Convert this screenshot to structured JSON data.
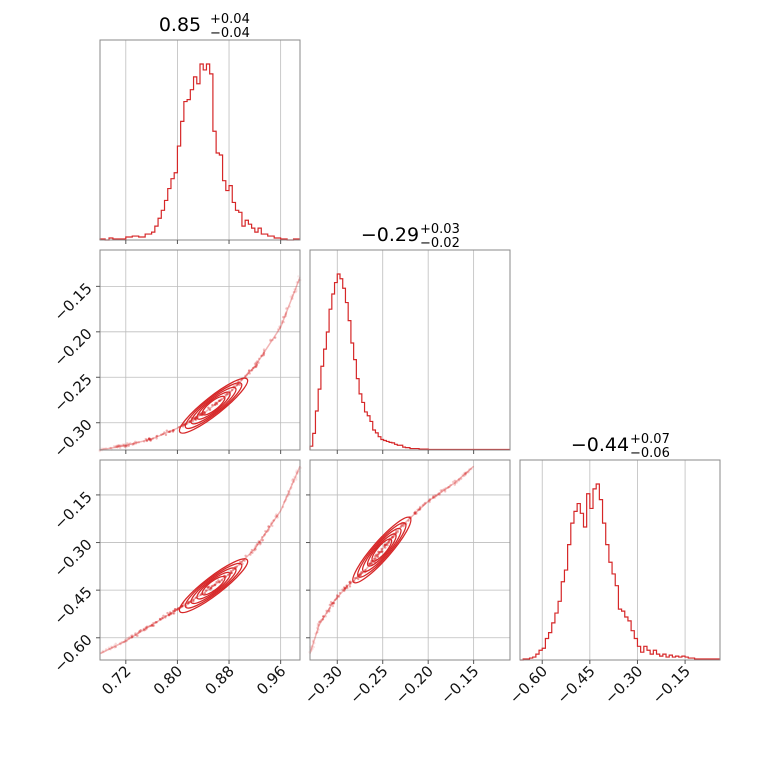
{
  "chart_data": {
    "type": "corner",
    "color": "#d62728",
    "grid": true,
    "parameters": [
      {
        "title_main": "0.85",
        "title_plus": "+0.04",
        "title_minus": "−0.04",
        "range": [
          0.68,
          0.99
        ],
        "ticks": [
          0.72,
          0.8,
          0.88,
          0.96
        ],
        "tick_labels": [
          "0.72",
          "0.80",
          "0.88",
          "0.96"
        ],
        "hist_bins": [
          [
            0.68,
            1
          ],
          [
            0.688,
            0
          ],
          [
            0.694,
            2
          ],
          [
            0.7,
            1
          ],
          [
            0.71,
            1
          ],
          [
            0.72,
            3
          ],
          [
            0.73,
            4
          ],
          [
            0.74,
            3
          ],
          [
            0.75,
            6
          ],
          [
            0.76,
            8
          ],
          [
            0.765,
            14
          ],
          [
            0.77,
            22
          ],
          [
            0.775,
            30
          ],
          [
            0.78,
            40
          ],
          [
            0.785,
            52
          ],
          [
            0.79,
            62
          ],
          [
            0.795,
            68
          ],
          [
            0.8,
            95
          ],
          [
            0.805,
            120
          ],
          [
            0.81,
            140
          ],
          [
            0.815,
            142
          ],
          [
            0.82,
            152
          ],
          [
            0.825,
            165
          ],
          [
            0.83,
            158
          ],
          [
            0.835,
            178
          ],
          [
            0.84,
            172
          ],
          [
            0.845,
            178
          ],
          [
            0.85,
            168
          ],
          [
            0.855,
            110
          ],
          [
            0.86,
            88
          ],
          [
            0.865,
            86
          ],
          [
            0.87,
            60
          ],
          [
            0.875,
            50
          ],
          [
            0.88,
            55
          ],
          [
            0.885,
            38
          ],
          [
            0.89,
            30
          ],
          [
            0.895,
            28
          ],
          [
            0.9,
            14
          ],
          [
            0.905,
            20
          ],
          [
            0.91,
            16
          ],
          [
            0.915,
            12
          ],
          [
            0.92,
            8
          ],
          [
            0.925,
            12
          ],
          [
            0.93,
            6
          ],
          [
            0.94,
            4
          ],
          [
            0.95,
            2
          ],
          [
            0.96,
            1
          ],
          [
            0.97,
            0
          ],
          [
            0.98,
            1
          ]
        ]
      },
      {
        "title_main": "−0.29",
        "title_plus": "+0.03",
        "title_minus": "−0.02",
        "range": [
          -0.33,
          -0.11
        ],
        "ticks": [
          -0.3,
          -0.25,
          -0.2,
          -0.15
        ],
        "tick_labels": [
          "−0.30",
          "−0.25",
          "−0.20",
          "−0.15"
        ],
        "hist_bins": [
          [
            -0.33,
            8
          ],
          [
            -0.327,
            35
          ],
          [
            -0.324,
            82
          ],
          [
            -0.321,
            128
          ],
          [
            -0.318,
            176
          ],
          [
            -0.315,
            212
          ],
          [
            -0.312,
            248
          ],
          [
            -0.309,
            296
          ],
          [
            -0.306,
            328
          ],
          [
            -0.303,
            352
          ],
          [
            -0.3,
            370
          ],
          [
            -0.297,
            360
          ],
          [
            -0.294,
            340
          ],
          [
            -0.291,
            310
          ],
          [
            -0.288,
            272
          ],
          [
            -0.285,
            225
          ],
          [
            -0.282,
            190
          ],
          [
            -0.279,
            150
          ],
          [
            -0.276,
            118
          ],
          [
            -0.273,
            100
          ],
          [
            -0.27,
            80
          ],
          [
            -0.267,
            72
          ],
          [
            -0.264,
            60
          ],
          [
            -0.261,
            42
          ],
          [
            -0.258,
            36
          ],
          [
            -0.255,
            28
          ],
          [
            -0.252,
            22
          ],
          [
            -0.249,
            20
          ],
          [
            -0.246,
            18
          ],
          [
            -0.243,
            16
          ],
          [
            -0.24,
            15
          ],
          [
            -0.237,
            12
          ],
          [
            -0.234,
            10
          ],
          [
            -0.231,
            10
          ],
          [
            -0.228,
            6
          ],
          [
            -0.225,
            5
          ],
          [
            -0.22,
            3
          ],
          [
            -0.21,
            2
          ],
          [
            -0.2,
            1
          ],
          [
            -0.19,
            1
          ],
          [
            -0.18,
            1
          ],
          [
            -0.17,
            1
          ],
          [
            -0.16,
            1
          ],
          [
            -0.14,
            1
          ]
        ]
      },
      {
        "title_main": "−0.44",
        "title_plus": "+0.07",
        "title_minus": "−0.06",
        "range": [
          -0.67,
          -0.04
        ],
        "ticks": [
          -0.6,
          -0.45,
          -0.3,
          -0.15
        ],
        "tick_labels": [
          "−0.60",
          "−0.45",
          "−0.30",
          "−0.15"
        ],
        "hist_bins": [
          [
            -0.67,
            0
          ],
          [
            -0.66,
            1
          ],
          [
            -0.64,
            2
          ],
          [
            -0.63,
            3
          ],
          [
            -0.62,
            6
          ],
          [
            -0.61,
            10
          ],
          [
            -0.6,
            12
          ],
          [
            -0.59,
            22
          ],
          [
            -0.58,
            28
          ],
          [
            -0.57,
            38
          ],
          [
            -0.56,
            48
          ],
          [
            -0.55,
            60
          ],
          [
            -0.54,
            80
          ],
          [
            -0.53,
            92
          ],
          [
            -0.52,
            118
          ],
          [
            -0.51,
            140
          ],
          [
            -0.5,
            152
          ],
          [
            -0.49,
            160
          ],
          [
            -0.48,
            150
          ],
          [
            -0.47,
            136
          ],
          [
            -0.46,
            170
          ],
          [
            -0.45,
            155
          ],
          [
            -0.44,
            175
          ],
          [
            -0.43,
            180
          ],
          [
            -0.42,
            164
          ],
          [
            -0.41,
            140
          ],
          [
            -0.4,
            118
          ],
          [
            -0.39,
            100
          ],
          [
            -0.38,
            88
          ],
          [
            -0.37,
            76
          ],
          [
            -0.36,
            52
          ],
          [
            -0.35,
            50
          ],
          [
            -0.34,
            44
          ],
          [
            -0.33,
            40
          ],
          [
            -0.32,
            30
          ],
          [
            -0.31,
            22
          ],
          [
            -0.3,
            14
          ],
          [
            -0.29,
            8
          ],
          [
            -0.28,
            14
          ],
          [
            -0.27,
            10
          ],
          [
            -0.26,
            6
          ],
          [
            -0.25,
            10
          ],
          [
            -0.24,
            6
          ],
          [
            -0.23,
            4
          ],
          [
            -0.22,
            6
          ],
          [
            -0.21,
            3
          ],
          [
            -0.2,
            5
          ],
          [
            -0.19,
            3
          ],
          [
            -0.18,
            4
          ],
          [
            -0.17,
            3
          ],
          [
            -0.16,
            4
          ],
          [
            -0.15,
            3
          ],
          [
            -0.14,
            2
          ],
          [
            -0.13,
            2
          ],
          [
            -0.12,
            1
          ],
          [
            -0.11,
            1
          ],
          [
            -0.1,
            1
          ],
          [
            -0.08,
            1
          ],
          [
            -0.06,
            1
          ]
        ]
      }
    ],
    "lower_panels": [
      {
        "row": 1,
        "col": 0,
        "ytick_labels": [
          "−0.15",
          "−0.20",
          "−0.25",
          "−0.30"
        ],
        "yticks": [
          -0.15,
          -0.2,
          -0.25,
          -0.3
        ],
        "curve": [
          [
            0.68,
            -0.33
          ],
          [
            0.72,
            -0.325
          ],
          [
            0.76,
            -0.318
          ],
          [
            0.8,
            -0.306
          ],
          [
            0.84,
            -0.29
          ],
          [
            0.88,
            -0.268
          ],
          [
            0.92,
            -0.238
          ],
          [
            0.96,
            -0.195
          ],
          [
            0.99,
            -0.14
          ]
        ]
      },
      {
        "row": 2,
        "col": 0,
        "ytick_labels": [
          "−0.15",
          "−0.30",
          "−0.45",
          "−0.60"
        ],
        "yticks": [
          -0.15,
          -0.3,
          -0.45,
          -0.6
        ],
        "curve": [
          [
            0.68,
            -0.65
          ],
          [
            0.72,
            -0.61
          ],
          [
            0.76,
            -0.56
          ],
          [
            0.8,
            -0.51
          ],
          [
            0.84,
            -0.46
          ],
          [
            0.88,
            -0.4
          ],
          [
            0.92,
            -0.32
          ],
          [
            0.96,
            -0.2
          ],
          [
            0.99,
            -0.06
          ]
        ]
      },
      {
        "row": 2,
        "col": 1,
        "curve": [
          [
            -0.33,
            -0.65
          ],
          [
            -0.32,
            -0.56
          ],
          [
            -0.305,
            -0.49
          ],
          [
            -0.29,
            -0.44
          ],
          [
            -0.27,
            -0.39
          ],
          [
            -0.25,
            -0.32
          ],
          [
            -0.23,
            -0.25
          ],
          [
            -0.2,
            -0.17
          ],
          [
            -0.17,
            -0.11
          ],
          [
            -0.15,
            -0.06
          ]
        ]
      }
    ]
  }
}
